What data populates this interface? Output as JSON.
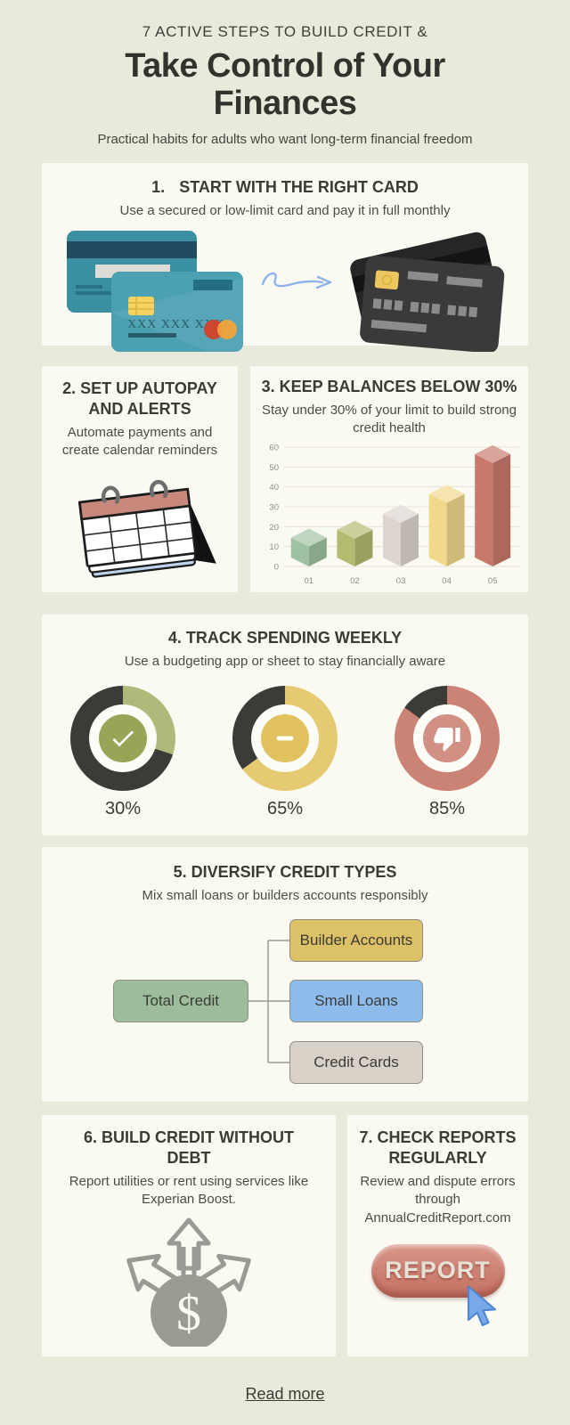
{
  "colors": {
    "background": "#e9eadb",
    "card": "#fbfaf2",
    "heading": "#33332e",
    "body_text": "#4c4c46",
    "teal_card": "#4ba0b2",
    "dark_card": "#3a3a3a",
    "salmon": "#c8796c",
    "olive": "#a9b36b",
    "yellow": "#e5c96e",
    "green_box": "#9cbc9c",
    "blue_box": "#8cbbec",
    "beige_box": "#d8d1c7",
    "cursor_blue": "#77a9e8"
  },
  "header": {
    "kicker": "7 ACTIVE STEPS TO BUILD CREDIT &",
    "title_line1": "Take Control of Your",
    "title_line2": "Finances",
    "subtitle": "Practical habits for adults who want long-term financial freedom"
  },
  "step1": {
    "number": "1.",
    "title": "START WITH THE RIGHT CARD",
    "desc": "Use a secured or low-limit card and pay it in full monthly",
    "card_number": "XXX XXX XXX"
  },
  "step2": {
    "title": "2. SET UP AUTOPAY AND ALERTS",
    "desc": "Automate payments and create calendar reminders"
  },
  "step3": {
    "title": "3. KEEP BALANCES BELOW 30%",
    "desc": "Stay under 30% of your limit to build strong credit health"
  },
  "step4": {
    "title": "4. TRACK SPENDING WEEKLY",
    "desc": "Use a budgeting app or sheet to stay financially aware",
    "ring_color": "#3b3b38",
    "donuts": [
      {
        "label": "30%",
        "percent": 30,
        "arc": "#adba7a",
        "center": "#97a557",
        "icon": "check-icon"
      },
      {
        "label": "65%",
        "percent": 65,
        "arc": "#e6ca72",
        "center": "#e2c25f",
        "icon": "minus-icon"
      },
      {
        "label": "85%",
        "percent": 85,
        "arc": "#cb8376",
        "center": "#d19083",
        "icon": "thumbs-down-icon"
      }
    ]
  },
  "step5": {
    "title": "5. DIVERSIFY CREDIT TYPES",
    "desc": "Mix small loans or builders accounts responsibly",
    "root": "Total Credit",
    "root_color": "#9cbc9c",
    "children": [
      "Builder Accounts",
      "Small Loans",
      "Credit Cards"
    ],
    "child_colors": [
      "#dcc166",
      "#8cbbec",
      "#d8d1c7"
    ]
  },
  "step6": {
    "title": "6. BUILD CREDIT WITHOUT DEBT",
    "desc": "Report utilities or rent using services like Experian Boost.",
    "icon_symbol": "$"
  },
  "step7": {
    "title": "7. CHECK REPORTS REGULARLY",
    "desc": "Review and dispute errors through AnnualCreditReport.com",
    "button_label": "REPORT"
  },
  "footer": {
    "link_label": "Read more"
  },
  "chart_data": {
    "type": "bar",
    "style": "3d-isometric",
    "title": "",
    "xlabel": "",
    "ylabel": "",
    "categories": [
      "01",
      "02",
      "03",
      "04",
      "05"
    ],
    "values": [
      10,
      14,
      22,
      32,
      52
    ],
    "bar_colors": [
      "#9fc2a2",
      "#b4ba70",
      "#ddd5cf",
      "#f2d88b",
      "#c8796c"
    ],
    "ylim": [
      0,
      60
    ],
    "yticks": [
      0,
      10,
      20,
      30,
      40,
      50,
      60
    ],
    "grid": true,
    "legend": false
  }
}
